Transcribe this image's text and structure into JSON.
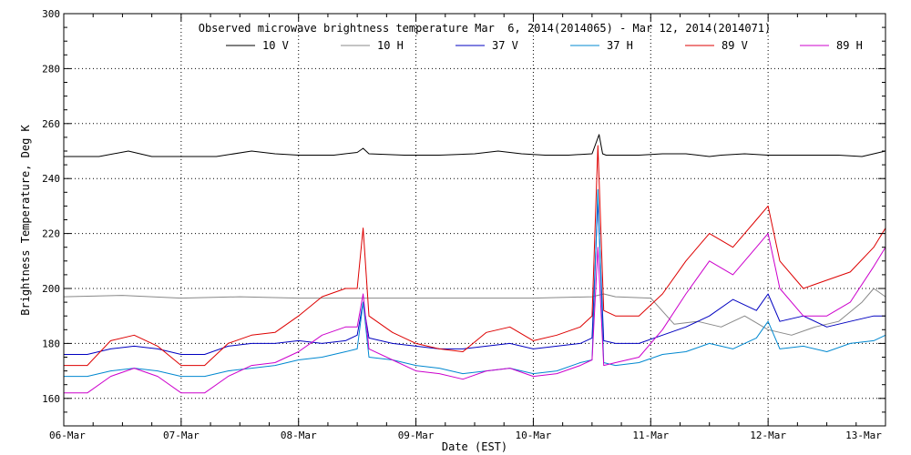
{
  "chart_data": {
    "type": "line",
    "title": "Observed microwave brightness temperature Mar  6, 2014(2014065) - Mar 12, 2014(2014071)",
    "xlabel": "Date (EST)",
    "ylabel": "Brightness Temperature, Deg K",
    "ylim": [
      150,
      300
    ],
    "xlim": [
      0,
      7
    ],
    "y_ticks": [
      160,
      180,
      200,
      220,
      240,
      260,
      280,
      300
    ],
    "x_ticks": [
      0,
      1,
      2,
      3,
      4,
      5,
      6,
      7
    ],
    "x_tick_labels": [
      "06-Mar",
      "07-Mar",
      "08-Mar",
      "09-Mar",
      "10-Mar",
      "11-Mar",
      "12-Mar",
      "13-Mar"
    ],
    "grid": true,
    "legend_position": "top",
    "series": [
      {
        "name": "10 V",
        "color": "#000000",
        "x": [
          0,
          0.3,
          0.55,
          0.75,
          1.0,
          1.3,
          1.6,
          1.8,
          2.0,
          2.3,
          2.5,
          2.55,
          2.6,
          2.9,
          3.2,
          3.5,
          3.7,
          3.9,
          4.1,
          4.3,
          4.5,
          4.56,
          4.59,
          4.62,
          4.7,
          4.9,
          5.1,
          5.3,
          5.5,
          5.6,
          5.8,
          6.0,
          6.3,
          6.6,
          6.8,
          7.0
        ],
        "y": [
          248,
          248,
          250,
          248,
          248,
          248,
          250,
          249,
          248.5,
          248.5,
          249.5,
          251,
          249,
          248.5,
          248.5,
          249,
          250,
          249,
          248.5,
          248.5,
          249,
          256,
          249,
          248.5,
          248.5,
          248.5,
          249,
          249,
          248,
          248.5,
          249,
          248.5,
          248.5,
          248.5,
          248,
          250
        ]
      },
      {
        "name": "10 H",
        "color": "#888888",
        "x": [
          0,
          0.5,
          1.0,
          1.5,
          2.0,
          2.5,
          3.0,
          3.5,
          4.0,
          4.5,
          4.6,
          4.7,
          5.0,
          5.2,
          5.4,
          5.6,
          5.8,
          6.0,
          6.2,
          6.4,
          6.6,
          6.8,
          6.9,
          7.0
        ],
        "y": [
          197,
          197.5,
          196.5,
          197,
          196.5,
          196.5,
          196.5,
          196.5,
          196.5,
          197,
          198,
          197,
          196.5,
          187,
          188,
          186,
          190,
          185,
          183,
          186,
          188,
          195,
          200,
          197
        ]
      },
      {
        "name": "37 V",
        "color": "#0000c0",
        "x": [
          0,
          0.2,
          0.4,
          0.6,
          0.8,
          1.0,
          1.2,
          1.4,
          1.6,
          1.8,
          2.0,
          2.2,
          2.4,
          2.5,
          2.55,
          2.6,
          2.8,
          3.0,
          3.2,
          3.4,
          3.6,
          3.8,
          4.0,
          4.2,
          4.4,
          4.5,
          4.55,
          4.6,
          4.7,
          4.9,
          5.1,
          5.3,
          5.5,
          5.7,
          5.9,
          6.0,
          6.1,
          6.3,
          6.5,
          6.7,
          6.9,
          7.0
        ],
        "y": [
          176,
          176,
          178,
          179,
          178,
          176,
          176,
          179,
          180,
          180,
          181,
          180,
          181,
          183,
          195,
          182,
          180,
          179,
          178,
          178,
          179,
          180,
          178,
          179,
          180,
          182,
          232,
          181,
          180,
          180,
          183,
          186,
          190,
          196,
          192,
          198,
          188,
          190,
          186,
          188,
          190,
          190
        ]
      },
      {
        "name": "37 H",
        "color": "#0088d0",
        "x": [
          0,
          0.2,
          0.4,
          0.6,
          0.8,
          1.0,
          1.2,
          1.4,
          1.6,
          1.8,
          2.0,
          2.2,
          2.4,
          2.5,
          2.55,
          2.6,
          2.8,
          3.0,
          3.2,
          3.4,
          3.6,
          3.8,
          4.0,
          4.2,
          4.4,
          4.5,
          4.55,
          4.6,
          4.7,
          4.9,
          5.1,
          5.3,
          5.5,
          5.7,
          5.9,
          6.0,
          6.1,
          6.3,
          6.5,
          6.7,
          6.9,
          7.0
        ],
        "y": [
          168,
          168,
          170,
          171,
          170,
          168,
          168,
          170,
          171,
          172,
          174,
          175,
          177,
          178,
          195,
          175,
          174,
          172,
          171,
          169,
          170,
          171,
          169,
          170,
          173,
          174,
          236,
          173,
          172,
          173,
          176,
          177,
          180,
          178,
          182,
          188,
          178,
          179,
          177,
          180,
          181,
          183
        ]
      },
      {
        "name": "89 V",
        "color": "#dd0000",
        "x": [
          0,
          0.2,
          0.4,
          0.6,
          0.8,
          1.0,
          1.2,
          1.4,
          1.6,
          1.8,
          2.0,
          2.2,
          2.4,
          2.5,
          2.55,
          2.6,
          2.8,
          3.0,
          3.2,
          3.4,
          3.6,
          3.8,
          4.0,
          4.2,
          4.4,
          4.5,
          4.55,
          4.6,
          4.7,
          4.9,
          5.1,
          5.3,
          5.5,
          5.7,
          5.9,
          6.0,
          6.1,
          6.3,
          6.5,
          6.7,
          6.9,
          7.0
        ],
        "y": [
          172,
          172,
          181,
          183,
          179,
          172,
          172,
          180,
          183,
          184,
          190,
          197,
          200,
          200,
          222,
          190,
          184,
          180,
          178,
          177,
          184,
          186,
          181,
          183,
          186,
          190,
          252,
          192,
          190,
          190,
          198,
          210,
          220,
          215,
          225,
          230,
          210,
          200,
          203,
          206,
          215,
          222
        ]
      },
      {
        "name": "89 H",
        "color": "#cc00cc",
        "x": [
          0,
          0.2,
          0.4,
          0.6,
          0.8,
          1.0,
          1.2,
          1.4,
          1.6,
          1.8,
          2.0,
          2.2,
          2.4,
          2.5,
          2.55,
          2.6,
          2.8,
          3.0,
          3.2,
          3.4,
          3.6,
          3.8,
          4.0,
          4.2,
          4.4,
          4.5,
          4.55,
          4.6,
          4.7,
          4.9,
          5.1,
          5.3,
          5.5,
          5.7,
          5.9,
          6.0,
          6.1,
          6.3,
          6.5,
          6.7,
          6.9,
          7.0
        ],
        "y": [
          162,
          162,
          168,
          171,
          168,
          162,
          162,
          168,
          172,
          173,
          177,
          183,
          186,
          186,
          198,
          178,
          174,
          170,
          169,
          167,
          170,
          171,
          168,
          169,
          172,
          174,
          215,
          172,
          173,
          175,
          185,
          198,
          210,
          205,
          215,
          220,
          200,
          190,
          190,
          195,
          208,
          215
        ]
      }
    ]
  }
}
